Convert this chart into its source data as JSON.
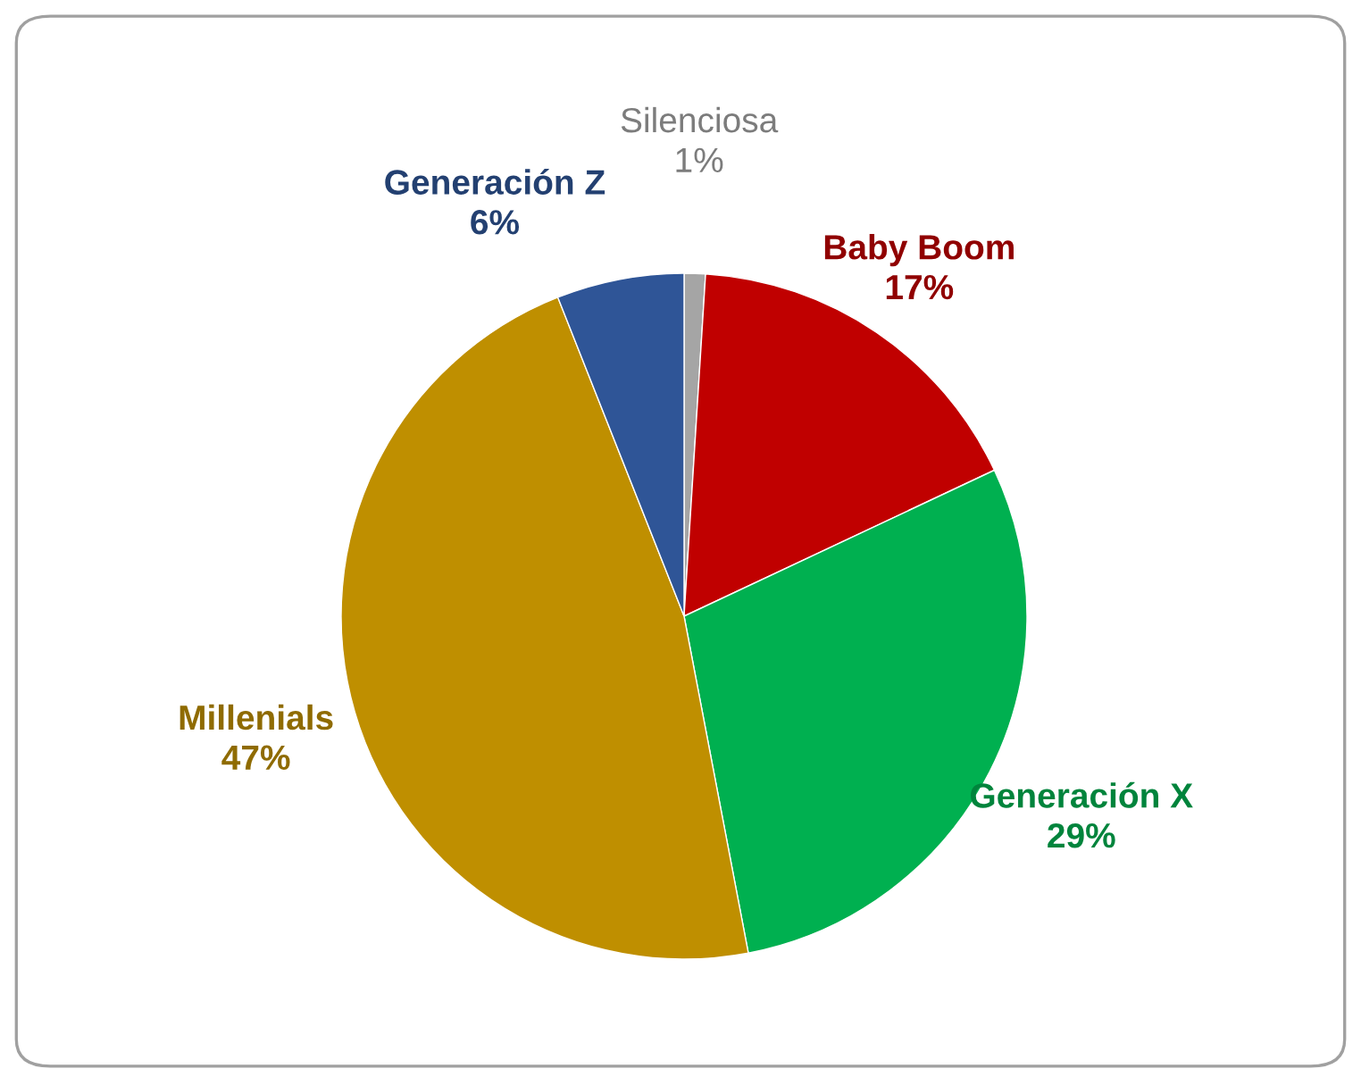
{
  "chart_data": {
    "type": "pie",
    "categories": [
      "Silenciosa",
      "Baby Boom",
      "Generación X",
      "Millenials",
      "Generación Z"
    ],
    "values": [
      1,
      17,
      29,
      47,
      6
    ],
    "value_labels": [
      "1%",
      "17%",
      "29%",
      "47%",
      "6%"
    ],
    "colors": [
      "#a5a5a5",
      "#c00000",
      "#00b050",
      "#bf8f00",
      "#2f5597"
    ],
    "legend": false
  }
}
